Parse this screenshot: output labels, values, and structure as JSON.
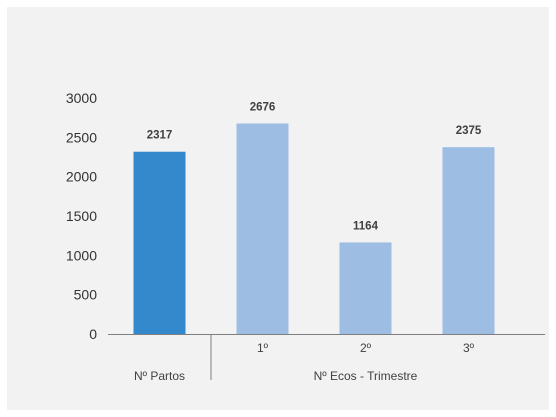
{
  "chart_data": {
    "type": "bar",
    "title": "",
    "xlabel": "",
    "ylabel": "",
    "ylim": [
      0,
      3000
    ],
    "yticks": [
      0,
      500,
      1000,
      1500,
      2000,
      2500,
      3000
    ],
    "grid": false,
    "categories": [
      "",
      "1º",
      "2º",
      "3º"
    ],
    "group_labels": [
      "Nº Partos",
      "Nº Ecos - Trimestre"
    ],
    "values": [
      2317,
      2676,
      1164,
      2375
    ],
    "data_labels": [
      "2317",
      "2676",
      "1164",
      "2375"
    ],
    "colors": [
      "#3488cc",
      "#9dbde3",
      "#9dbde3",
      "#9dbde3"
    ]
  }
}
